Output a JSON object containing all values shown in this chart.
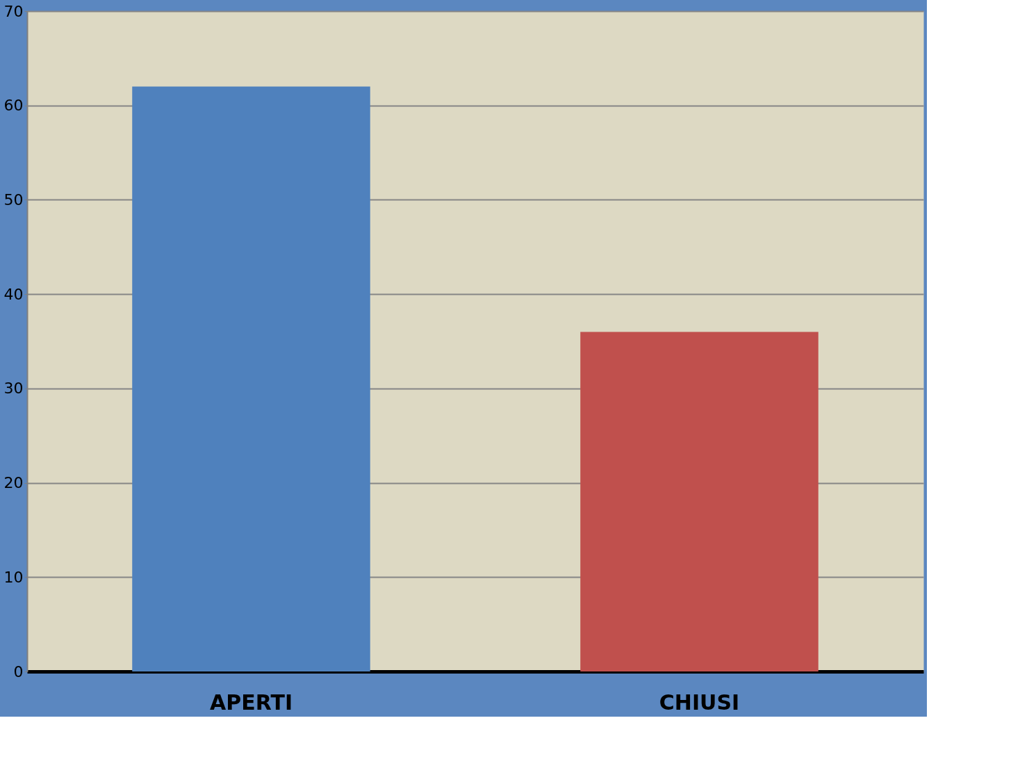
{
  "chart_data": {
    "type": "bar",
    "categories": [
      "APERTI",
      "CHIUSI"
    ],
    "values": [
      62,
      36
    ],
    "colors": [
      "#4f81bd",
      "#c0504d"
    ],
    "ylim": [
      0,
      70
    ],
    "yticks": [
      0,
      10,
      20,
      30,
      40,
      50,
      60,
      70
    ],
    "grid": "y"
  }
}
